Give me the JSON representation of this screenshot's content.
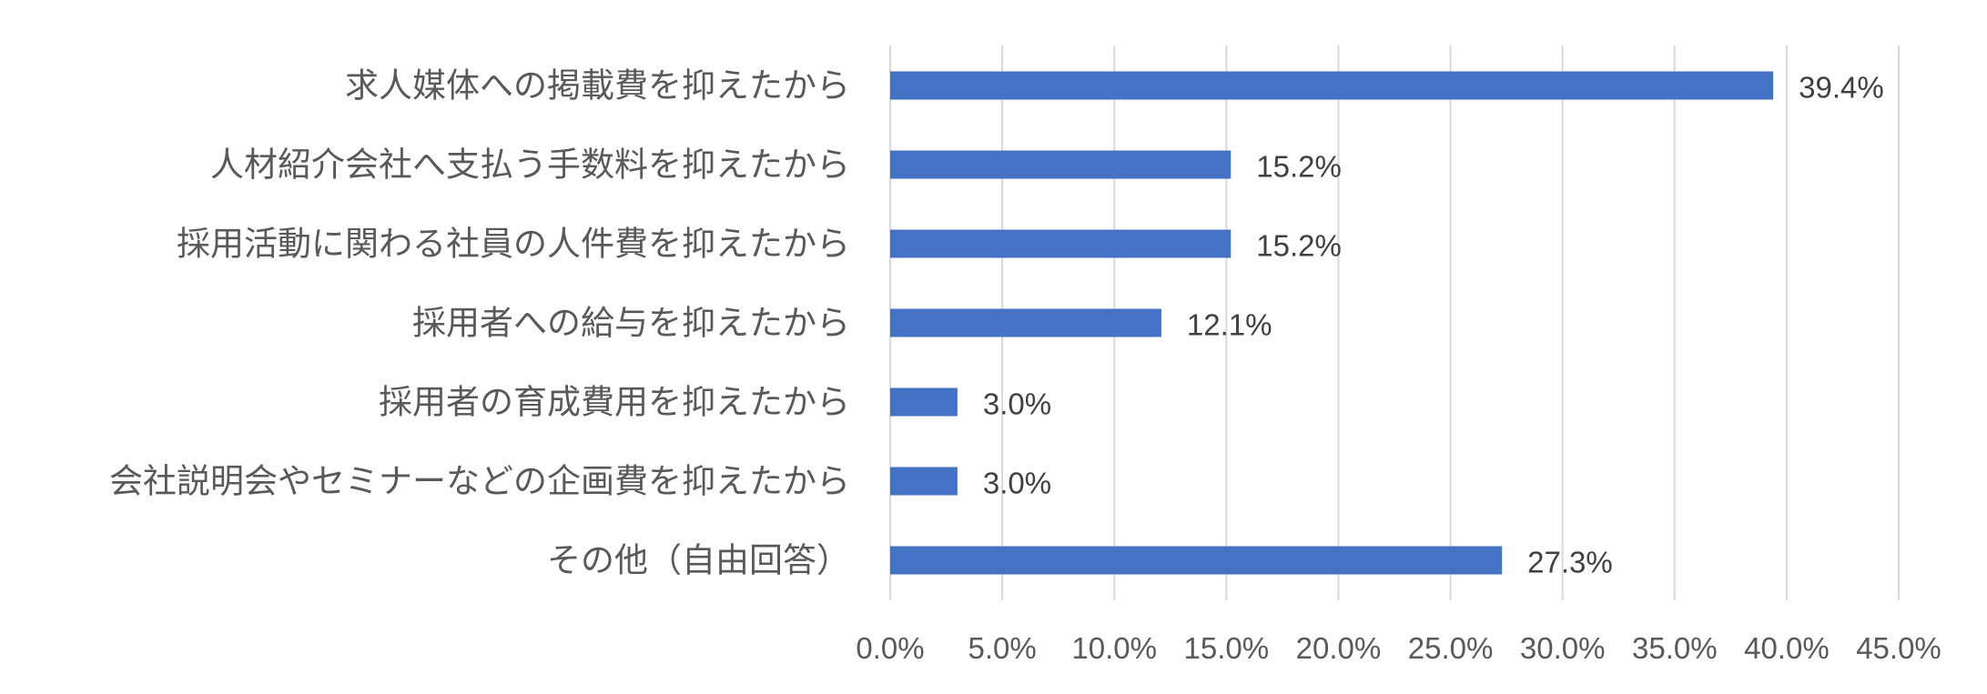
{
  "chart_data": {
    "type": "bar",
    "orientation": "horizontal",
    "title": "",
    "xlabel": "",
    "ylabel": "",
    "categories": [
      "求人媒体への掲載費を抑えたから",
      "人材紹介会社へ支払う手数料を抑えたから",
      "採用活動に関わる社員の人件費を抑えたから",
      "採用者への給与を抑えたから",
      "採用者の育成費用を抑えたから",
      "会社説明会やセミナーなどの企画費を抑えたから",
      "その他（自由回答）"
    ],
    "values": [
      39.4,
      15.2,
      15.2,
      12.1,
      3.0,
      3.0,
      27.3
    ],
    "data_labels": [
      "39.4%",
      "15.2%",
      "15.2%",
      "12.1%",
      "3.0%",
      "3.0%",
      "27.3%"
    ],
    "xlim": [
      0,
      45
    ],
    "x_ticks": [
      0,
      5,
      10,
      15,
      20,
      25,
      30,
      35,
      40,
      45
    ],
    "x_tick_labels": [
      "0.0%",
      "5.0%",
      "10.0%",
      "15.0%",
      "20.0%",
      "25.0%",
      "30.0%",
      "35.0%",
      "40.0%",
      "45.0%"
    ],
    "grid": true,
    "legend": "none",
    "bar_color": "#4472c4"
  }
}
